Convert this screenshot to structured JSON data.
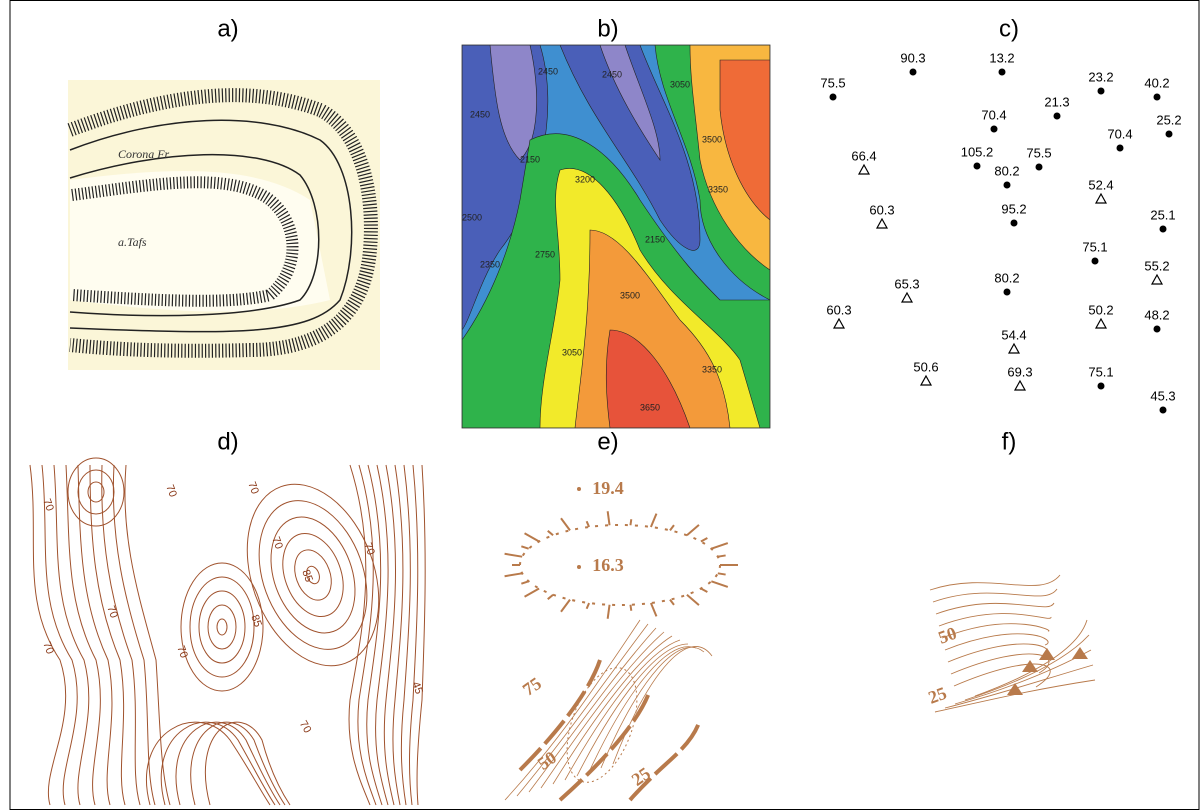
{
  "panels": [
    {
      "label": "a)",
      "texts": [
        "Corona Fr.",
        "a.Tafs"
      ]
    },
    {
      "label": "b)",
      "contour_labels": [
        "2450",
        "2450",
        "2450",
        "3050",
        "3500",
        "2150",
        "3200",
        "3350",
        "2500",
        "2150",
        "2350",
        "2750",
        "3500",
        "3050",
        "3350",
        "3650"
      ]
    },
    {
      "label": "c)",
      "points": [
        {
          "value": "75.5",
          "marker": "circle"
        },
        {
          "value": "90.3",
          "marker": "circle"
        },
        {
          "value": "13.2",
          "marker": "circle"
        },
        {
          "value": "23.2",
          "marker": "circle"
        },
        {
          "value": "40.2",
          "marker": "circle"
        },
        {
          "value": "21.3",
          "marker": "circle"
        },
        {
          "value": "70.4",
          "marker": "circle"
        },
        {
          "value": "25.2",
          "marker": "circle"
        },
        {
          "value": "70.4",
          "marker": "circle"
        },
        {
          "value": "66.4",
          "marker": "triangle"
        },
        {
          "value": "105.2",
          "marker": "circle"
        },
        {
          "value": "75.5",
          "marker": "circle"
        },
        {
          "value": "80.2",
          "marker": "circle"
        },
        {
          "value": "52.4",
          "marker": "triangle"
        },
        {
          "value": "60.3",
          "marker": "triangle"
        },
        {
          "value": "95.2",
          "marker": "circle"
        },
        {
          "value": "25.1",
          "marker": "circle"
        },
        {
          "value": "75.1",
          "marker": "circle"
        },
        {
          "value": "55.2",
          "marker": "triangle"
        },
        {
          "value": "65.3",
          "marker": "triangle"
        },
        {
          "value": "80.2",
          "marker": "circle"
        },
        {
          "value": "60.3",
          "marker": "triangle"
        },
        {
          "value": "50.2",
          "marker": "triangle"
        },
        {
          "value": "48.2",
          "marker": "circle"
        },
        {
          "value": "54.4",
          "marker": "triangle"
        },
        {
          "value": "50.6",
          "marker": "triangle"
        },
        {
          "value": "69.3",
          "marker": "triangle"
        },
        {
          "value": "75.1",
          "marker": "circle"
        },
        {
          "value": "45.3",
          "marker": "circle"
        }
      ]
    },
    {
      "label": "d)",
      "contour_labels": [
        "70",
        "70",
        "70",
        "70",
        "85",
        "70",
        "70",
        "70",
        "85",
        "70",
        "45"
      ]
    },
    {
      "label": "e)",
      "spot_heights": [
        "19.4",
        "16.3"
      ],
      "contour_labels": [
        "75",
        "50",
        "25"
      ]
    },
    {
      "label": "f)",
      "contour_labels": [
        "50",
        "25"
      ]
    }
  ]
}
